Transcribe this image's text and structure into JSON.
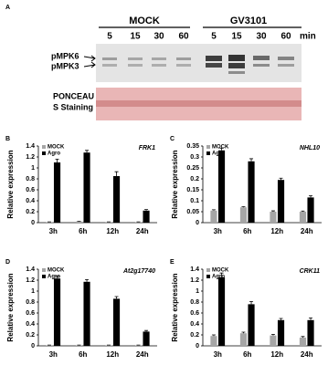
{
  "blot": {
    "panel_label": "A",
    "groups": [
      "MOCK",
      "GV3101"
    ],
    "lanes": [
      "5",
      "15",
      "30",
      "60",
      "5",
      "15",
      "30",
      "60"
    ],
    "unit": "min",
    "bands": [
      "pMPK6",
      "pMPK3"
    ],
    "staining": [
      "PONCEAU",
      "S Staining"
    ]
  },
  "chart_data": [
    {
      "type": "bar",
      "panel_label": "B",
      "gene": "FRK1",
      "ylabel": "Relative expression",
      "categories": [
        "3h",
        "6h",
        "12h",
        "24h"
      ],
      "ylim": [
        0,
        1.4
      ],
      "yticks": [
        0,
        0.2,
        0.4,
        0.6,
        0.8,
        1,
        1.2,
        1.4
      ],
      "legend": "upper left",
      "series": [
        {
          "name": "MOCK",
          "color": "#a6a6a6",
          "values": [
            0.01,
            0.02,
            0.01,
            0.01
          ],
          "errors": [
            0.005,
            0.005,
            0.005,
            0.005
          ]
        },
        {
          "name": "Agro",
          "color": "#000000",
          "values": [
            1.1,
            1.28,
            0.85,
            0.22
          ],
          "errors": [
            0.06,
            0.04,
            0.08,
            0.02
          ]
        }
      ]
    },
    {
      "type": "bar",
      "panel_label": "C",
      "gene": "NHL10",
      "ylabel": "Relative expression",
      "categories": [
        "3h",
        "6h",
        "12h",
        "24h"
      ],
      "ylim": [
        0,
        0.35
      ],
      "yticks": [
        0,
        0.05,
        0.1,
        0.15,
        0.2,
        0.25,
        0.3,
        0.35
      ],
      "legend": "upper left",
      "series": [
        {
          "name": "MOCK",
          "color": "#a6a6a6",
          "values": [
            0.055,
            0.07,
            0.05,
            0.05
          ],
          "errors": [
            0.004,
            0.003,
            0.004,
            0.003
          ]
        },
        {
          "name": "Agro",
          "color": "#000000",
          "values": [
            0.33,
            0.28,
            0.195,
            0.115
          ],
          "errors": [
            0.01,
            0.012,
            0.008,
            0.008
          ]
        }
      ]
    },
    {
      "type": "bar",
      "panel_label": "D",
      "gene": "At2g17740",
      "ylabel": "Relative expression",
      "categories": [
        "3h",
        "6h",
        "12h",
        "24h"
      ],
      "ylim": [
        0,
        1.4
      ],
      "yticks": [
        0,
        0.2,
        0.4,
        0.6,
        0.8,
        1,
        1.2,
        1.4
      ],
      "legend": "upper left",
      "series": [
        {
          "name": "MOCK",
          "color": "#a6a6a6",
          "values": [
            0.01,
            0.01,
            0.01,
            0.01
          ],
          "errors": [
            0.005,
            0.005,
            0.005,
            0.005
          ]
        },
        {
          "name": "Agro",
          "color": "#000000",
          "values": [
            1.23,
            1.17,
            0.86,
            0.26
          ],
          "errors": [
            0.04,
            0.04,
            0.04,
            0.02
          ]
        }
      ]
    },
    {
      "type": "bar",
      "panel_label": "E",
      "gene": "CRK11",
      "ylabel": "Relative expression",
      "categories": [
        "3h",
        "6h",
        "12h",
        "24h"
      ],
      "ylim": [
        0,
        1.4
      ],
      "yticks": [
        0,
        0.2,
        0.4,
        0.6,
        0.8,
        1,
        1.2,
        1.4
      ],
      "legend": "upper left",
      "series": [
        {
          "name": "MOCK",
          "color": "#a6a6a6",
          "values": [
            0.18,
            0.23,
            0.19,
            0.15
          ],
          "errors": [
            0.02,
            0.02,
            0.02,
            0.02
          ]
        },
        {
          "name": "Agro",
          "color": "#000000",
          "values": [
            1.25,
            0.76,
            0.47,
            0.47
          ],
          "errors": [
            0.08,
            0.05,
            0.03,
            0.04
          ]
        }
      ]
    }
  ]
}
